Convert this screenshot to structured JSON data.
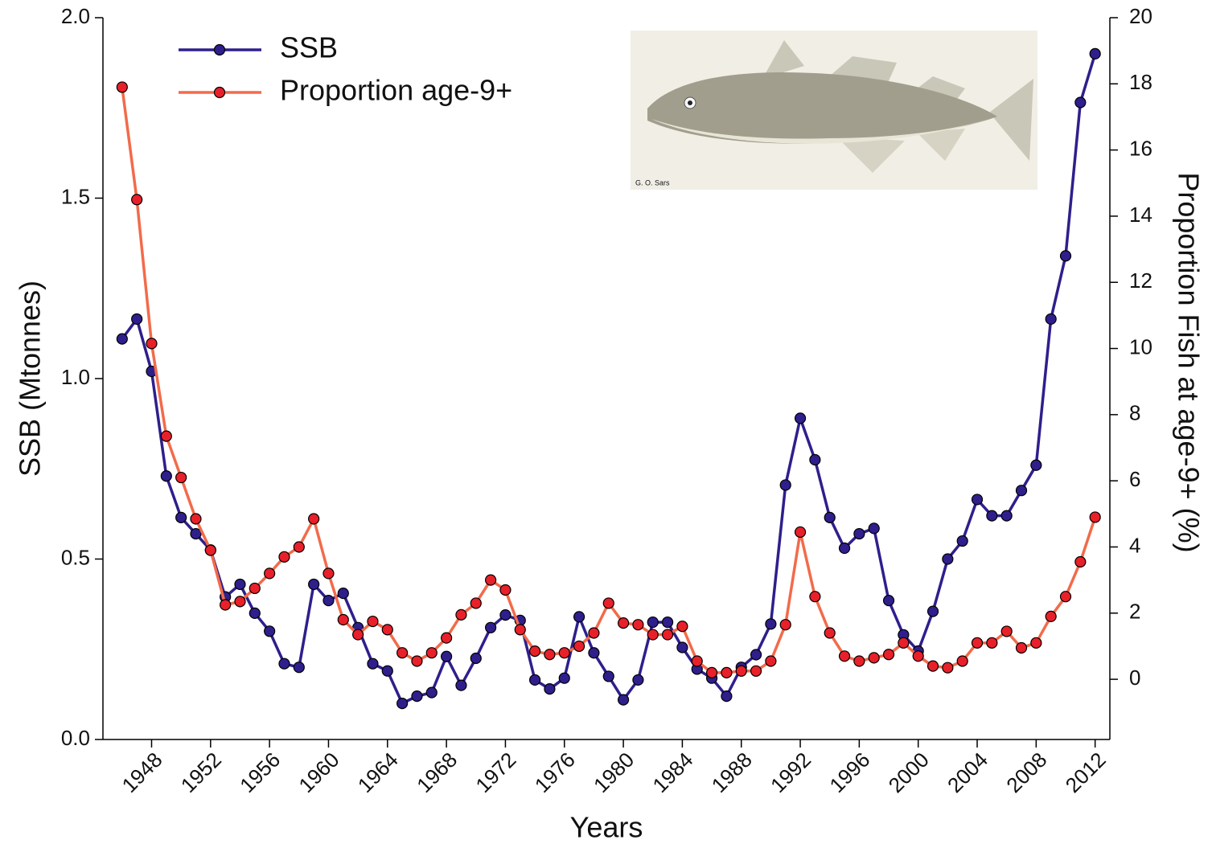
{
  "chart_data": {
    "type": "line",
    "x": [
      1946,
      1947,
      1948,
      1949,
      1950,
      1951,
      1952,
      1953,
      1954,
      1955,
      1956,
      1957,
      1958,
      1959,
      1960,
      1961,
      1962,
      1963,
      1964,
      1965,
      1966,
      1967,
      1968,
      1969,
      1970,
      1971,
      1972,
      1973,
      1974,
      1975,
      1976,
      1977,
      1978,
      1979,
      1980,
      1981,
      1982,
      1983,
      1984,
      1985,
      1986,
      1987,
      1988,
      1989,
      1990,
      1991,
      1992,
      1993,
      1994,
      1995,
      1996,
      1997,
      1998,
      1999,
      2000,
      2001,
      2002,
      2003,
      2004,
      2005,
      2006,
      2007,
      2008,
      2009,
      2010,
      2011,
      2012
    ],
    "series": [
      {
        "name": "SSB",
        "color": "#2e1f8c",
        "marker_color": "#2e1f8c",
        "values": [
          1.11,
          1.165,
          1.02,
          0.73,
          0.615,
          0.57,
          0.525,
          0.395,
          0.43,
          0.35,
          0.3,
          0.21,
          0.2,
          0.43,
          0.385,
          0.405,
          0.31,
          0.21,
          0.19,
          0.1,
          0.12,
          0.13,
          0.23,
          0.15,
          0.225,
          0.31,
          0.345,
          0.33,
          0.165,
          0.14,
          0.17,
          0.34,
          0.24,
          0.175,
          0.11,
          0.165,
          0.325,
          0.325,
          0.255,
          0.195,
          0.17,
          0.12,
          0.2,
          0.235,
          0.32,
          0.705,
          0.89,
          0.775,
          0.615,
          0.53,
          0.57,
          0.585,
          0.385,
          0.29,
          0.245,
          0.355,
          0.5,
          0.55,
          0.665,
          0.62,
          0.62,
          0.69,
          0.76,
          1.165,
          1.34,
          1.765,
          1.9
        ]
      },
      {
        "name": "Proportion age-9+",
        "color": "#f26b4a",
        "marker_color": "#e8202a",
        "axis": "y2",
        "values": [
          17.9,
          14.5,
          10.15,
          7.35,
          6.1,
          4.85,
          3.9,
          2.25,
          2.35,
          2.75,
          3.2,
          3.7,
          4.0,
          4.85,
          3.2,
          1.8,
          1.35,
          1.75,
          1.5,
          0.8,
          0.55,
          0.8,
          1.25,
          1.95,
          2.3,
          3.0,
          2.7,
          1.5,
          0.85,
          0.75,
          0.8,
          1.0,
          1.4,
          2.3,
          1.7,
          1.65,
          1.35,
          1.35,
          1.6,
          0.55,
          0.2,
          0.2,
          0.25,
          0.25,
          0.55,
          1.65,
          4.45,
          2.5,
          1.4,
          0.7,
          0.55,
          0.65,
          0.75,
          1.1,
          0.7,
          0.4,
          0.35,
          0.55,
          1.1,
          1.1,
          1.45,
          0.95,
          1.1,
          1.9,
          2.5,
          3.55,
          4.9
        ]
      }
    ],
    "xlabel": "Years",
    "ylabel": "SSB (Mtonnes)",
    "y2label": "Proportion Fish at age-9+ (%)",
    "xlim": [
      1944.7,
      2013
    ],
    "xticks": [
      1948,
      1952,
      1956,
      1960,
      1964,
      1968,
      1972,
      1976,
      1980,
      1984,
      1988,
      1992,
      1996,
      2000,
      2004,
      2008,
      2012
    ],
    "ylim": [
      0,
      2
    ],
    "yticks": [
      {
        "value": 0,
        "label": "0.0"
      },
      0.5,
      {
        "value": 1,
        "label": "1.0"
      },
      1.5,
      {
        "value": 2,
        "label": "2.0"
      }
    ],
    "y2lim": [
      -1.82,
      20
    ],
    "y2ticks": [
      0,
      2,
      4,
      6,
      8,
      10,
      12,
      14,
      16,
      18,
      20
    ],
    "legend": "upper left",
    "annotation": "G. O. Sars"
  }
}
